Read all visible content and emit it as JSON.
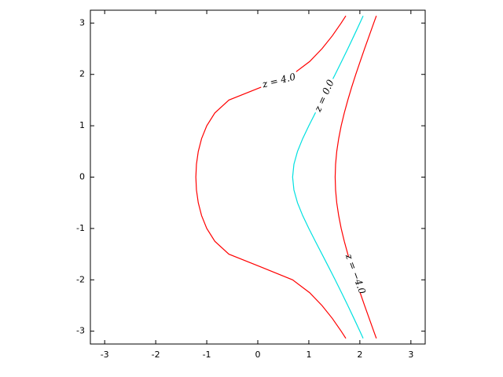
{
  "chart_data": {
    "type": "contour",
    "xlim": [
      -3.28,
      3.28
    ],
    "ylim": [
      -3.25,
      3.25
    ],
    "xticks": [
      -3,
      -2,
      -1,
      0,
      1,
      2,
      3
    ],
    "yticks": [
      -3,
      -2,
      -1,
      0,
      1,
      2,
      3
    ],
    "series": [
      {
        "level": 4,
        "label": "z = 4.0",
        "color": "#ff0000",
        "y": [
          -3.14,
          -3,
          -2.75,
          -2.5,
          -2.25,
          -2,
          -1.75,
          -1.5,
          -1.25,
          -1,
          -0.75,
          -0.5,
          -0.25,
          0,
          0.25,
          0.5,
          0.75,
          1,
          1.25,
          1.5,
          1.75,
          2,
          2.25,
          2.5,
          2.75,
          3,
          3.14
        ],
        "x": [
          1.725,
          1.634,
          1.459,
          1.258,
          1.015,
          0.6823,
          0.0623,
          -0.567,
          -0.8415,
          -1.0,
          -1.101,
          -1.166,
          -1.202,
          -1.2134,
          -1.202,
          -1.166,
          -1.101,
          -1.0,
          -0.8415,
          -0.567,
          0.0623,
          0.6823,
          1.015,
          1.258,
          1.459,
          1.634,
          1.725
        ]
      },
      {
        "level": 0,
        "label": "z = 0.0",
        "color": "#00e0e0",
        "y": [
          -3.14,
          -3,
          -2.75,
          -2.5,
          -2.25,
          -2,
          -1.75,
          -1.5,
          -1.25,
          -1,
          -0.75,
          -0.5,
          -0.25,
          0,
          0.25,
          0.5,
          0.75,
          1,
          1.25,
          1.5,
          1.75,
          2,
          2.25,
          2.5,
          2.75,
          3,
          3.14
        ],
        "x": [
          2.064,
          2.0,
          1.883,
          1.764,
          1.641,
          1.516,
          1.388,
          1.258,
          1.128,
          1.0,
          0.88,
          0.778,
          0.708,
          0.6823,
          0.708,
          0.778,
          0.88,
          1.0,
          1.128,
          1.258,
          1.388,
          1.516,
          1.641,
          1.764,
          1.883,
          2.0,
          2.064
        ]
      },
      {
        "level": -4,
        "label": "z = −4.0",
        "color": "#ff0000",
        "y": [
          -3.14,
          -3,
          -2.75,
          -2.5,
          -2.25,
          -2,
          -1.75,
          -1.5,
          -1.25,
          -1,
          -0.75,
          -0.5,
          -0.25,
          0,
          0.25,
          0.5,
          0.75,
          1,
          1.25,
          1.5,
          1.75,
          2,
          2.25,
          2.5,
          2.75,
          3,
          3.14
        ],
        "x": [
          2.323,
          2.272,
          2.182,
          2.092,
          2.005,
          1.92,
          1.839,
          1.764,
          1.695,
          1.634,
          1.585,
          1.547,
          1.524,
          1.516,
          1.524,
          1.547,
          1.585,
          1.634,
          1.695,
          1.764,
          1.839,
          1.92,
          2.005,
          2.092,
          2.182,
          2.272,
          2.323
        ]
      }
    ]
  }
}
